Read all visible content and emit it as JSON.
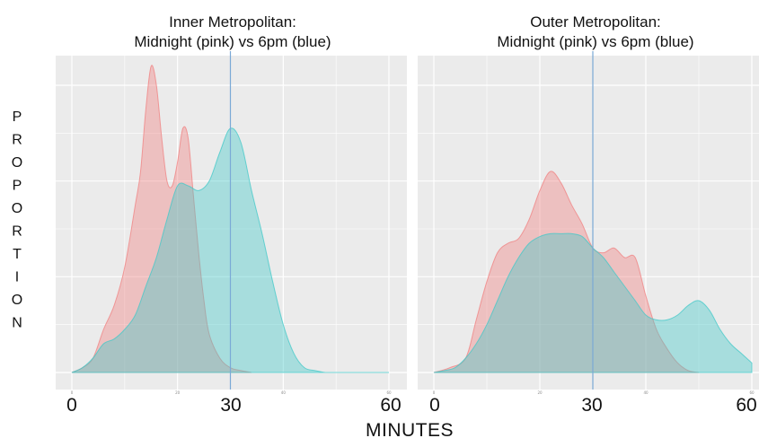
{
  "figure": {
    "ylabel": "PROPORTION",
    "xlabel": "MINUTES",
    "big_xticks": [
      "0",
      "30",
      "60"
    ]
  },
  "chart_data": [
    {
      "type": "area",
      "title_line1": "Inner Metropolitan:",
      "title_line2": "Midnight (pink) vs 6pm (blue)",
      "xlim": [
        0,
        60
      ],
      "ylim": [
        0,
        3
      ],
      "small_xticks": [
        "0",
        "20",
        "40",
        "60"
      ],
      "vline_x": 30,
      "grid": true,
      "colors": {
        "pink": "#f08080",
        "blue": "#40c8c8",
        "vline": "#7aa9d6",
        "panel": "#ebebeb"
      },
      "series": [
        {
          "color": "pink",
          "x": [
            0,
            2,
            4,
            6,
            8,
            10,
            12,
            13,
            14,
            15,
            16,
            17,
            18,
            19,
            20,
            21,
            22,
            23,
            24,
            25,
            26,
            28,
            30,
            32,
            34
          ],
          "values": [
            0,
            0.05,
            0.15,
            0.45,
            0.7,
            1.1,
            1.75,
            2.1,
            2.75,
            3.2,
            3.0,
            2.45,
            2.0,
            1.95,
            2.2,
            2.55,
            2.45,
            1.85,
            1.25,
            0.75,
            0.4,
            0.15,
            0.05,
            0.02,
            0
          ]
        },
        {
          "color": "blue",
          "x": [
            0,
            2,
            4,
            6,
            8,
            10,
            12,
            14,
            16,
            18,
            20,
            22,
            24,
            26,
            28,
            30,
            32,
            34,
            36,
            38,
            40,
            42,
            44,
            46,
            48,
            50,
            55,
            60
          ],
          "values": [
            0,
            0.05,
            0.15,
            0.3,
            0.35,
            0.45,
            0.6,
            0.9,
            1.2,
            1.6,
            1.95,
            1.95,
            1.9,
            2.0,
            2.3,
            2.55,
            2.4,
            1.9,
            1.45,
            0.95,
            0.5,
            0.2,
            0.05,
            0.02,
            0,
            0,
            0,
            0
          ]
        }
      ]
    },
    {
      "type": "area",
      "title_line1": "Outer Metropolitan:",
      "title_line2": "Midnight (pink) vs 6pm (blue)",
      "xlim": [
        0,
        60
      ],
      "ylim": [
        0,
        3
      ],
      "small_xticks": [
        "0",
        "20",
        "40",
        "60"
      ],
      "vline_x": 30,
      "grid": true,
      "colors": {
        "pink": "#f08080",
        "blue": "#40c8c8",
        "vline": "#7aa9d6",
        "panel": "#ebebeb"
      },
      "series": [
        {
          "color": "pink",
          "x": [
            0,
            3,
            6,
            8,
            10,
            12,
            14,
            16,
            18,
            20,
            22,
            24,
            26,
            28,
            30,
            32,
            34,
            36,
            38,
            40,
            42,
            44,
            46,
            48,
            50
          ],
          "values": [
            0,
            0.05,
            0.15,
            0.55,
            0.95,
            1.25,
            1.35,
            1.4,
            1.6,
            1.9,
            2.1,
            1.98,
            1.75,
            1.55,
            1.3,
            1.25,
            1.3,
            1.2,
            1.2,
            0.8,
            0.45,
            0.25,
            0.1,
            0.02,
            0
          ]
        },
        {
          "color": "blue",
          "x": [
            0,
            2,
            4,
            6,
            8,
            10,
            12,
            14,
            16,
            18,
            20,
            22,
            24,
            26,
            28,
            30,
            32,
            34,
            36,
            38,
            40,
            42,
            44,
            46,
            48,
            50,
            52,
            54,
            56,
            58,
            60
          ],
          "values": [
            0,
            0.02,
            0.05,
            0.15,
            0.3,
            0.5,
            0.75,
            1.0,
            1.2,
            1.35,
            1.42,
            1.45,
            1.45,
            1.45,
            1.42,
            1.3,
            1.2,
            1.05,
            0.9,
            0.75,
            0.6,
            0.55,
            0.55,
            0.6,
            0.7,
            0.75,
            0.65,
            0.45,
            0.3,
            0.2,
            0.1
          ]
        }
      ]
    }
  ]
}
